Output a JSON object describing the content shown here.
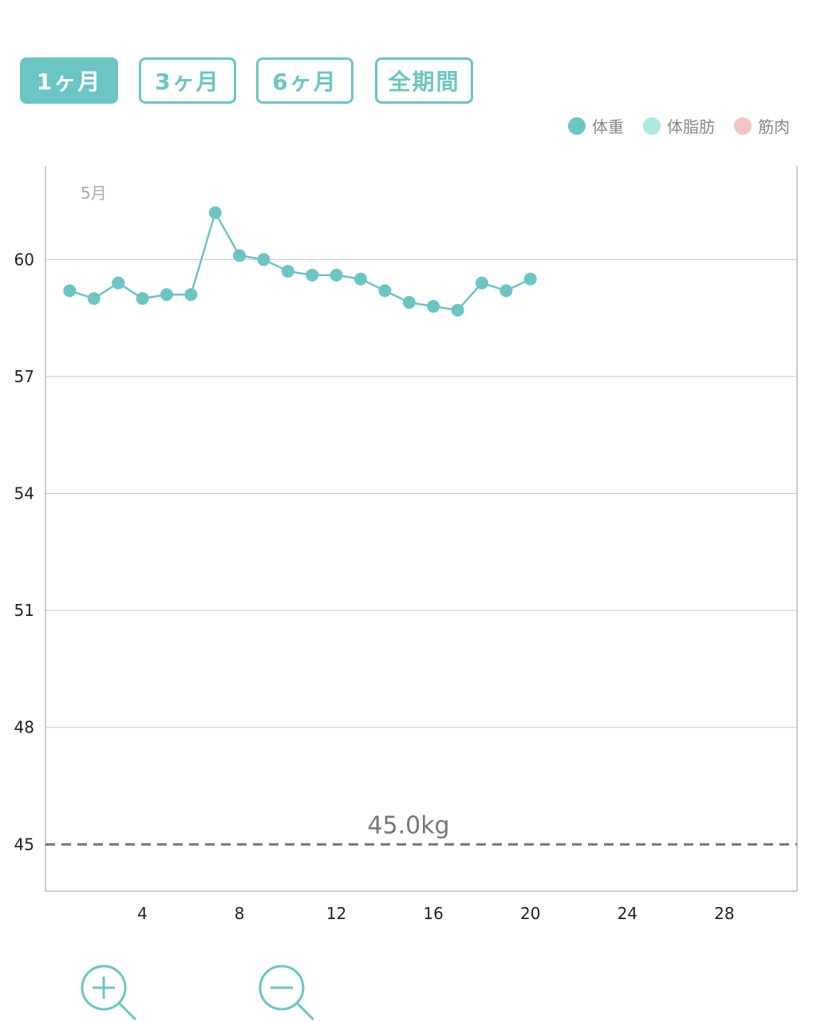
{
  "tabs": [
    {
      "label": "1ヶ月",
      "active": true
    },
    {
      "label": "3ヶ月",
      "active": false
    },
    {
      "label": "6ヶ月",
      "active": false
    },
    {
      "label": "全期間",
      "active": false
    }
  ],
  "legend": [
    {
      "label": "体重",
      "color": "#6cc5c2"
    },
    {
      "label": "体脂肪",
      "color": "#ade8e3"
    },
    {
      "label": "筋肉",
      "color": "#f3c4c4"
    }
  ],
  "chart_data": {
    "type": "line",
    "month_label": "5月",
    "x": [
      1,
      2,
      3,
      4,
      5,
      6,
      7,
      8,
      9,
      10,
      11,
      12,
      13,
      14,
      15,
      16,
      17,
      18,
      19,
      20
    ],
    "series": [
      {
        "name": "体重",
        "color": "#6cc5c2",
        "values": [
          59.2,
          59.0,
          59.4,
          59.0,
          59.1,
          59.1,
          61.2,
          60.1,
          60.0,
          59.7,
          59.6,
          59.6,
          59.5,
          59.2,
          58.9,
          58.8,
          58.7,
          59.4,
          59.2,
          59.5
        ]
      }
    ],
    "xlim": [
      0,
      31
    ],
    "ylim": [
      43.8,
      62.4
    ],
    "x_ticks": [
      "4",
      "8",
      "12",
      "16",
      "20",
      "24",
      "28"
    ],
    "y_ticks": [
      "45",
      "48",
      "51",
      "54",
      "57",
      "60"
    ],
    "grid": true,
    "target": {
      "value": 45.0,
      "label": "45.0kg"
    }
  },
  "controls": {
    "zoom_in": "zoom-in-icon",
    "zoom_out": "zoom-out-icon"
  }
}
